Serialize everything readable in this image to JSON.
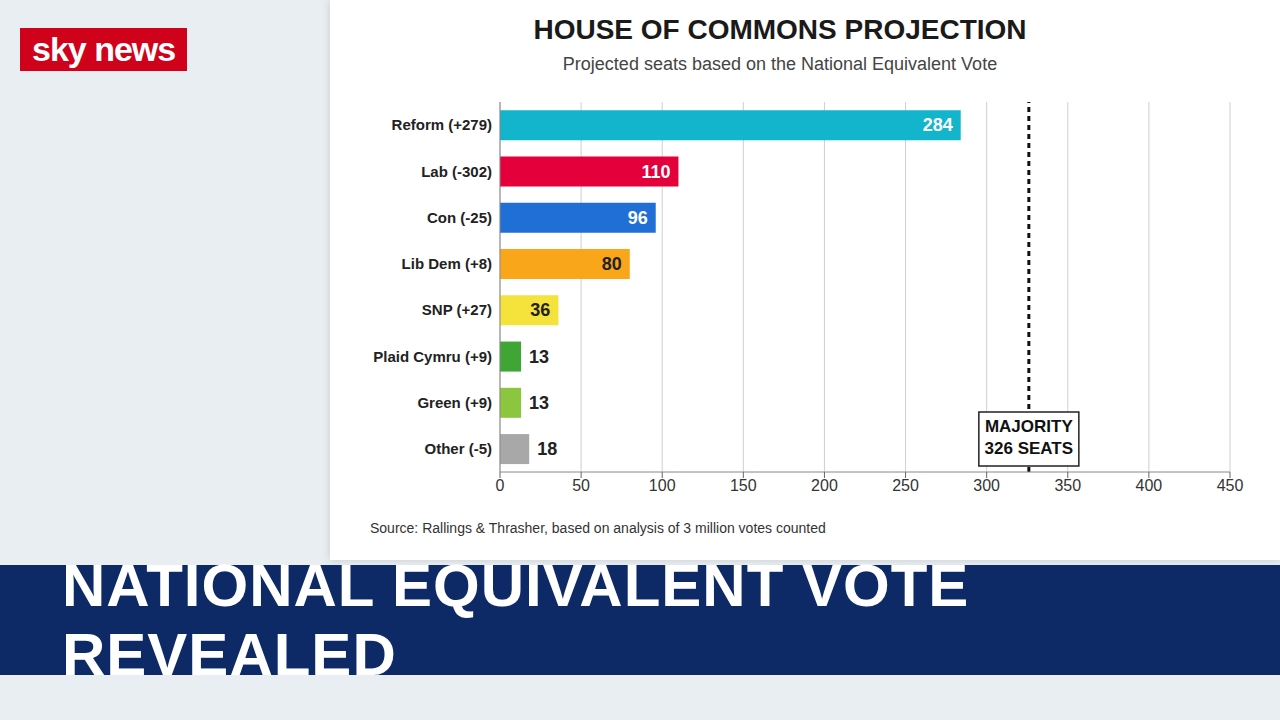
{
  "header": {
    "logo": "sky news",
    "banner": "NATIONAL EQUIVALENT VOTE REVEALED"
  },
  "chart_data": {
    "type": "bar",
    "orientation": "horizontal",
    "title": "HOUSE OF COMMONS PROJECTION",
    "subtitle": "Projected seats based on the National Equivalent Vote",
    "categories": [
      "Reform (+279)",
      "Lab (-302)",
      "Con (-25)",
      "Lib Dem (+8)",
      "SNP (+27)",
      "Plaid Cymru (+9)",
      "Green (+9)",
      "Other (-5)"
    ],
    "values": [
      284,
      110,
      96,
      80,
      36,
      13,
      13,
      18
    ],
    "colors": [
      "#12b5cb",
      "#e4003b",
      "#1f6fd6",
      "#faa61a",
      "#f5e23a",
      "#3fa535",
      "#8cc63f",
      "#a8a8a8"
    ],
    "xlim": [
      0,
      450
    ],
    "xticks": [
      0,
      50,
      100,
      150,
      200,
      250,
      300,
      350,
      400,
      450
    ],
    "grid": true,
    "data_labels": true,
    "annotations": [
      {
        "value": 326,
        "label": [
          "MAJORITY",
          "326 SEATS"
        ]
      }
    ],
    "source": "Source: Rallings & Thrasher, based on analysis of 3 million votes counted"
  }
}
